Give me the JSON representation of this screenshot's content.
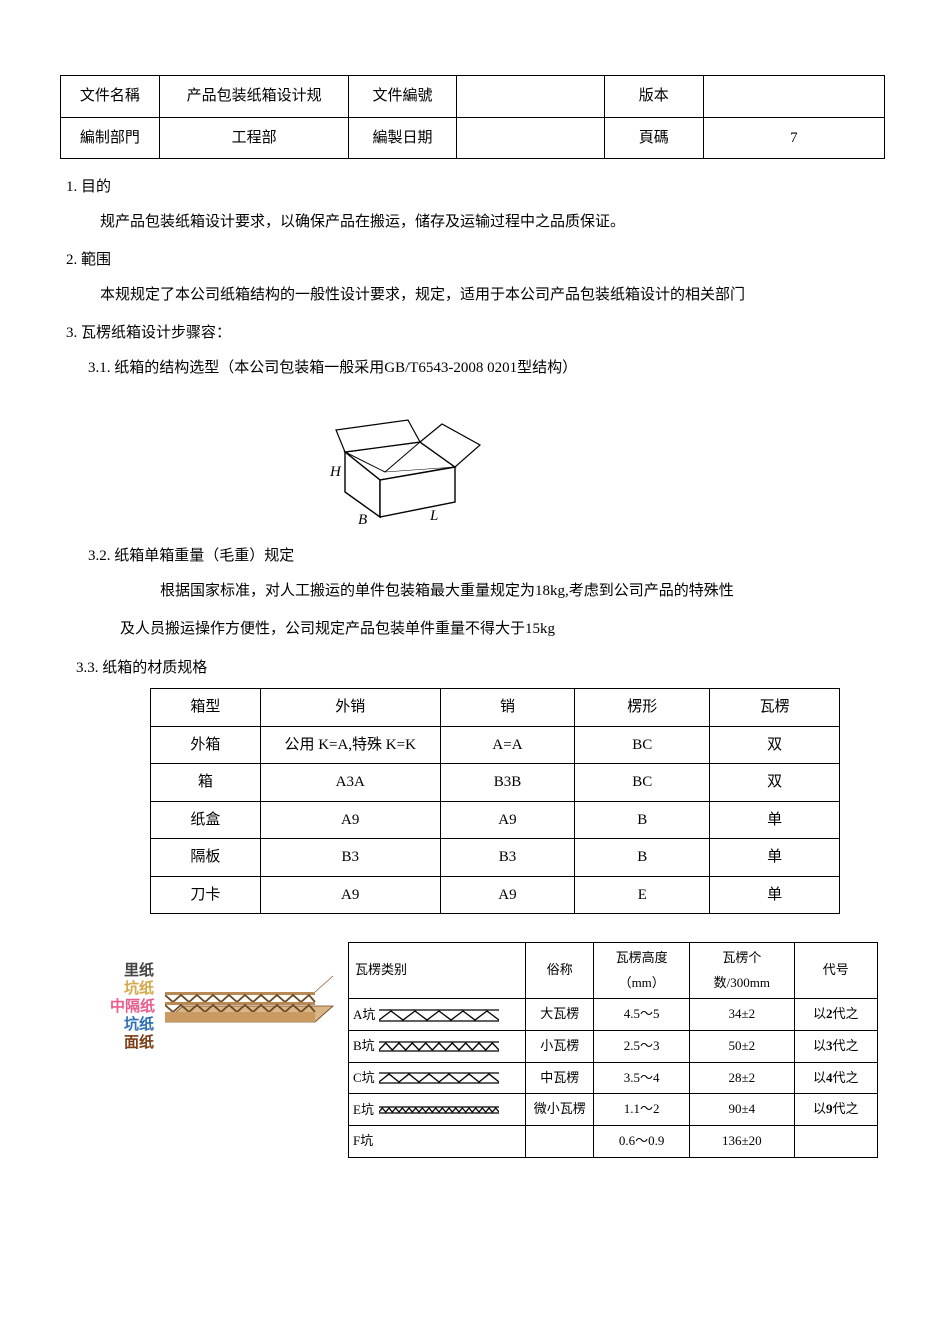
{
  "header": {
    "rows": [
      {
        "label1": "文件名稱",
        "val1": "产品包装纸箱设计规",
        "label2": "文件編號",
        "val2": "",
        "label3": "版本",
        "val3": ""
      },
      {
        "label1": "編制部門",
        "val1": "工程部",
        "label2": "編製日期",
        "val2": "",
        "label3": "頁碼",
        "val3": "7"
      }
    ]
  },
  "sections": {
    "s1_title": "1. 目的",
    "s1_body": "规产品包装纸箱设计要求，以确保产品在搬运，储存及运输过程中之品质保证。",
    "s2_title": "2. 範围",
    "s2_body": "本规规定了本公司纸箱结构的一般性设计要求，规定，适用于本公司产品包装纸箱设计的相关部门",
    "s3_title": "3. 瓦楞纸箱设计步骤容：",
    "s31_title": "3.1. 纸箱的结构选型（本公司包装箱一般采用GB/T6543-2008 0201型结构）",
    "box_labels": {
      "H": "H",
      "B": "B",
      "L": "L"
    },
    "s32_title": "3.2. 纸箱单箱重量（毛重）规定",
    "s32_body1": "根据国家标准，对人工搬运的单件包装箱最大重量规定为18kg,考虑到公司产品的特殊性",
    "s32_body2": "及人员搬运操作方便性，公司规定产品包装单件重量不得大于15kg",
    "s33_title": "3.3. 纸箱的材质规格"
  },
  "mat_table": {
    "columns": [
      "箱型",
      "外销",
      "销",
      "楞形",
      "瓦楞"
    ],
    "rows": [
      [
        "外箱",
        "公用 K=A,特殊 K=K",
        "A=A",
        "BC",
        "双"
      ],
      [
        "箱",
        "A3A",
        "B3B",
        "BC",
        "双"
      ],
      [
        "纸盒",
        "A9",
        "A9",
        "B",
        "单"
      ],
      [
        "隔板",
        "B3",
        "B3",
        "B",
        "单"
      ],
      [
        "刀卡",
        "A9",
        "A9",
        "E",
        "单"
      ]
    ]
  },
  "layer_labels": {
    "l1": "里纸",
    "l2": "坑纸",
    "l3": "中隔纸",
    "l4": "坑纸",
    "l5": "面纸",
    "colors": {
      "l1": "#444444",
      "l2": "#d4a84b",
      "l3": "#e95d8f",
      "l4": "#2f6fb3",
      "l5": "#7a3f16",
      "board_top": "#b98a56",
      "board_side": "#d9b686",
      "flute": "#6b4a23"
    }
  },
  "corr_table": {
    "columns": [
      "瓦楞类别",
      "俗称",
      "瓦楞高度（mm）",
      "瓦楞个数/300mm",
      "代号"
    ],
    "rows": [
      {
        "type": "A坑",
        "nick": "大瓦楞",
        "h": "4.5～5",
        "count": "34±2",
        "code": "以2代之",
        "code_bold": "2",
        "flute_n": 5,
        "flute_h": 9
      },
      {
        "type": "B坑",
        "nick": "小瓦楞",
        "h": "2.5～3",
        "count": "50±2",
        "code": "以3代之",
        "code_bold": "3",
        "flute_n": 9,
        "flute_h": 7
      },
      {
        "type": "C坑",
        "nick": "中瓦楞",
        "h": "3.5～4",
        "count": "28±2",
        "code": "以4代之",
        "code_bold": "4",
        "flute_n": 6,
        "flute_h": 8
      },
      {
        "type": "E坑",
        "nick": "微小瓦楞",
        "h": "1.1～2",
        "count": "90±4",
        "code": "以9代之",
        "code_bold": "9",
        "flute_n": 18,
        "flute_h": 4
      },
      {
        "type": "F坑",
        "nick": "",
        "h": "0.6～0.9",
        "count": "136±20",
        "code": "",
        "code_bold": "",
        "flute_n": 0,
        "flute_h": 0
      }
    ]
  },
  "style": {
    "body_font_size": 15,
    "table_border_color": "#000000",
    "background": "#ffffff"
  }
}
